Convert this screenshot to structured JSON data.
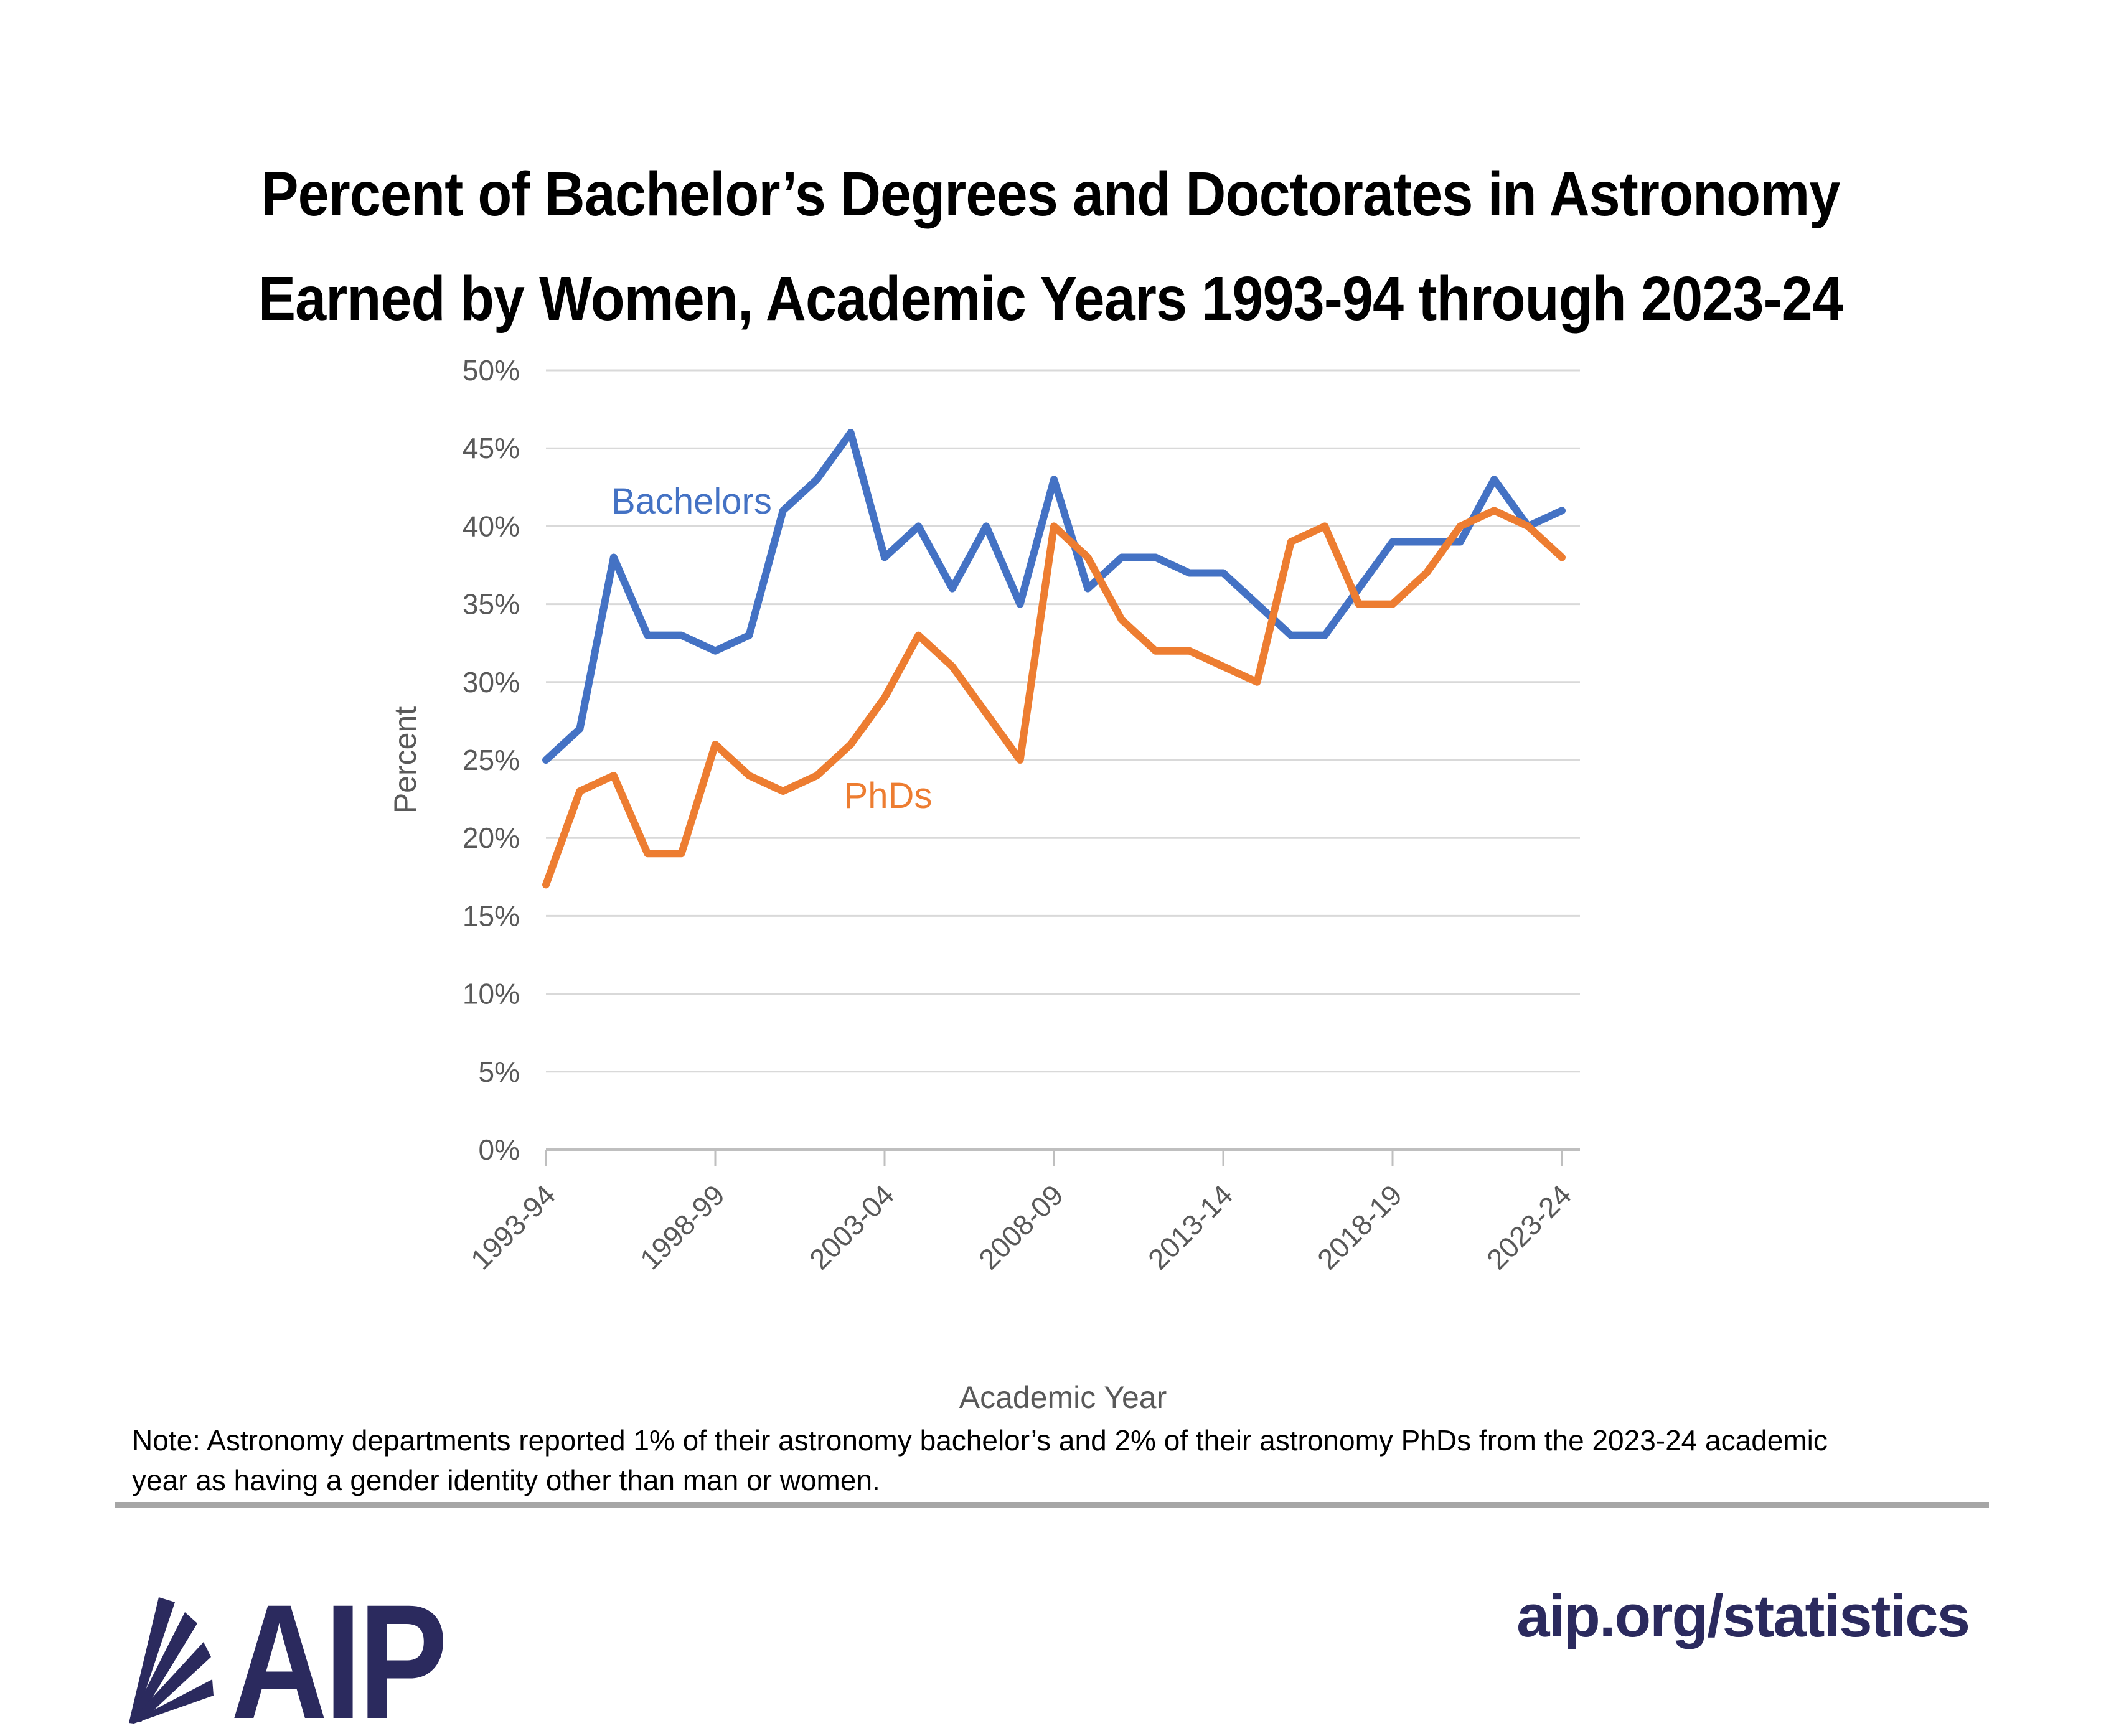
{
  "title": {
    "line1": "Percent of Bachelor’s Degrees and Doctorates in Astronomy",
    "line2": "Earned by Women, Academic Years 1993-94 through 2023-24"
  },
  "chart_data": {
    "type": "line",
    "title": "",
    "xlabel": "Academic Year",
    "ylabel": "Percent",
    "ylim": [
      0,
      50
    ],
    "ytick_step": 5,
    "grid": true,
    "legend_position": "inline-annotations",
    "y_tick_labels": [
      "0%",
      "5%",
      "10%",
      "15%",
      "20%",
      "25%",
      "30%",
      "35%",
      "40%",
      "45%",
      "50%"
    ],
    "x_tick_labels": [
      "1993-94",
      "1998-99",
      "2003-04",
      "2008-09",
      "2013-14",
      "2018-19",
      "2023-24"
    ],
    "x_tick_every": 5,
    "categories": [
      "1993-94",
      "1994-95",
      "1995-96",
      "1996-97",
      "1997-98",
      "1998-99",
      "1999-00",
      "2000-01",
      "2001-02",
      "2002-03",
      "2003-04",
      "2004-05",
      "2005-06",
      "2006-07",
      "2007-08",
      "2008-09",
      "2009-10",
      "2010-11",
      "2011-12",
      "2012-13",
      "2013-14",
      "2014-15",
      "2015-16",
      "2016-17",
      "2017-18",
      "2018-19",
      "2019-20",
      "2020-21",
      "2021-22",
      "2022-23",
      "2023-24"
    ],
    "series": [
      {
        "name": "Bachelors",
        "color": "#4472C4",
        "label_anchor": {
          "x_index": 4.3,
          "value": 41.6
        },
        "values": [
          25,
          27,
          38,
          33,
          33,
          32,
          33,
          41,
          43,
          46,
          38,
          40,
          36,
          40,
          35,
          43,
          36,
          38,
          38,
          37,
          37,
          35,
          33,
          33,
          36,
          39,
          39,
          39,
          43,
          40,
          41
        ]
      },
      {
        "name": "PhDs",
        "color": "#ED7D31",
        "label_anchor": {
          "x_index": 10.1,
          "value": 22.7
        },
        "values": [
          17,
          23,
          24,
          19,
          19,
          26,
          24,
          23,
          24,
          26,
          29,
          33,
          31,
          28,
          25,
          40,
          38,
          34,
          32,
          32,
          31,
          30,
          39,
          40,
          35,
          35,
          37,
          40,
          41,
          40,
          38
        ]
      }
    ]
  },
  "note": {
    "line1": "Note: Astronomy departments reported 1% of their astronomy bachelor’s and 2% of their astronomy PhDs from the 2023-24 academic",
    "line2": "year as having a gender identity other than man or women."
  },
  "footer": {
    "logo_text": "AIP",
    "url": "aip.org/statistics"
  },
  "colors": {
    "bachelors_line": "#4472C4",
    "phds_line": "#ED7D31",
    "brand_navy": "#2b2a5e",
    "axis_text": "#595959",
    "gridline": "#d9d9d9",
    "divider": "#a6a6a6"
  }
}
